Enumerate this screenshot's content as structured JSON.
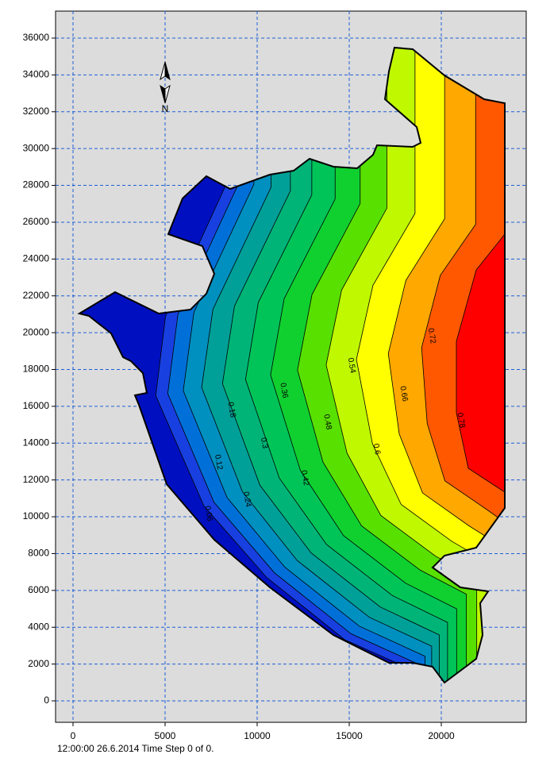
{
  "chart_data": {
    "type": "contour",
    "xlim": [
      -948,
      24612
    ],
    "ylim": [
      -1164,
      37466
    ],
    "xticks": [
      0,
      5000,
      10000,
      15000,
      20000
    ],
    "yticks": [
      0,
      2000,
      4000,
      6000,
      8000,
      10000,
      12000,
      14000,
      16000,
      18000,
      20000,
      22000,
      24000,
      26000,
      28000,
      30000,
      32000,
      34000,
      36000
    ],
    "grid": true,
    "levels": [
      0.06,
      0.12,
      0.18,
      0.24,
      0.3,
      0.36,
      0.42,
      0.48,
      0.54,
      0.6,
      0.66,
      0.72,
      0.78
    ],
    "colors": [
      "#1840e0",
      "#0070d8",
      "#0090c0",
      "#00a098",
      "#00b478",
      "#00c458",
      "#10d030",
      "#58e000",
      "#c0f800",
      "#ffff00",
      "#ffa800",
      "#ff5800",
      "#ff0000"
    ],
    "base_color": "#0010c0",
    "north_label": "N",
    "status": "12:00:00 26.6.2014  Time Step 0 of 0."
  }
}
